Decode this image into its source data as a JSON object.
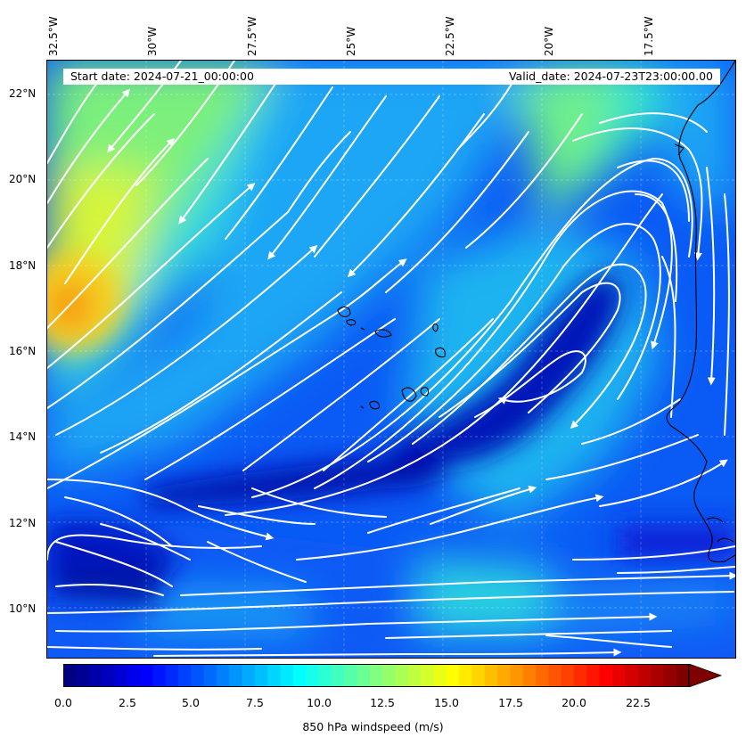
{
  "map": {
    "start_date": "Start date: 2024-07-21_00:00:00",
    "valid_date": "Valid_date: 2024-07-23T23:00:00.00",
    "longitude_labels": [
      "32.5°W",
      "30°W",
      "27.5°W",
      "25°W",
      "22.5°W",
      "20°W",
      "17.5°W"
    ],
    "latitude_labels": [
      "22°N",
      "20°N",
      "18°N",
      "16°N",
      "14°N",
      "12°N",
      "10°N"
    ],
    "extent": {
      "lon_min": -32.6,
      "lon_max": -15.2,
      "lat_min": 8.9,
      "lat_max": 22.8
    },
    "field_colormap": "jet",
    "streamline_color": "#ffffff",
    "coastline_color": "#000000",
    "gridlines": "dashed"
  },
  "colorbar": {
    "label": "850 hPa windspeed (m/s)",
    "ticks": [
      "0.0",
      "2.5",
      "5.0",
      "7.5",
      "10.0",
      "12.5",
      "15.0",
      "17.5",
      "20.0",
      "22.5"
    ],
    "range": [
      0,
      25
    ],
    "extend": "max"
  }
}
